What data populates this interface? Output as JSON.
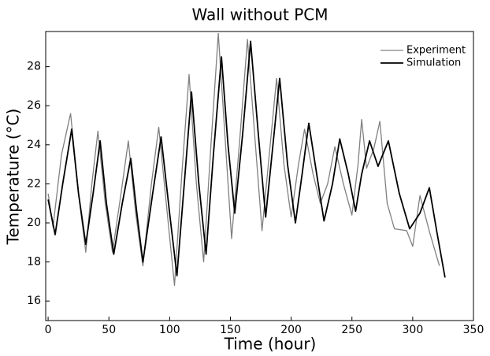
{
  "chart_data": {
    "type": "line",
    "title": "Wall without PCM",
    "x_label": "Time (hour)",
    "y_label": "Temperature (°C)",
    "xlim": [
      -2,
      350
    ],
    "xticks": [
      0,
      50,
      100,
      150,
      200,
      250,
      300,
      350
    ],
    "ylim": [
      15,
      29.8
    ],
    "yticks": [
      16,
      18,
      20,
      22,
      24,
      26,
      28
    ],
    "legend": "upper right",
    "series": [
      {
        "name": "Experiment",
        "color": "#808080",
        "x": [
          0,
          4,
          11,
          18.5,
          25,
          31,
          36,
          41,
          47,
          53,
          60,
          66,
          72,
          78,
          85,
          91,
          98,
          104,
          110,
          116,
          122,
          128,
          134,
          140,
          146,
          151,
          158,
          164,
          170,
          176,
          182,
          188,
          194,
          200,
          206,
          211,
          218,
          224,
          230,
          236,
          243,
          250,
          255,
          258,
          262,
          268,
          273,
          279,
          285,
          295,
          300,
          306,
          314,
          322
        ],
        "values": [
          21.5,
          19.8,
          23.5,
          25.6,
          21.5,
          18.5,
          22.0,
          24.7,
          21.0,
          18.5,
          21.5,
          24.2,
          20.5,
          17.8,
          22.0,
          24.9,
          20.5,
          16.8,
          22.5,
          27.6,
          22.0,
          18.0,
          24.0,
          29.7,
          24.0,
          19.2,
          24.5,
          29.4,
          24.5,
          19.6,
          23.5,
          27.4,
          23.0,
          20.3,
          23.0,
          24.8,
          22.5,
          21.0,
          22.0,
          23.9,
          22.0,
          20.4,
          23.0,
          25.3,
          22.8,
          23.8,
          25.2,
          21.0,
          19.7,
          19.6,
          18.8,
          21.4,
          19.5,
          17.8
        ]
      },
      {
        "name": "Simulation",
        "color": "#000000",
        "x": [
          0,
          5.8,
          12,
          19.4,
          25,
          31,
          37,
          42.8,
          48,
          54,
          61,
          68,
          73,
          78,
          86,
          93,
          100,
          106,
          112,
          118,
          124,
          130,
          136,
          142.6,
          148,
          153.6,
          160,
          166.6,
          173,
          179,
          185,
          190.5,
          197,
          203.5,
          209,
          214.5,
          221,
          227,
          234,
          240,
          247,
          253,
          258,
          264.5,
          271.5,
          280,
          289,
          297.5,
          306,
          313.7,
          320,
          326.6
        ],
        "values": [
          21.2,
          19.4,
          22.0,
          24.8,
          21.5,
          18.9,
          21.5,
          24.2,
          21.0,
          18.4,
          21.0,
          23.3,
          20.5,
          18.0,
          21.5,
          24.4,
          20.5,
          17.3,
          22.0,
          26.7,
          22.0,
          18.4,
          23.5,
          28.5,
          24.0,
          20.5,
          24.5,
          29.3,
          24.5,
          20.3,
          24.0,
          27.4,
          23.0,
          20.0,
          22.5,
          25.1,
          22.5,
          20.1,
          22.0,
          24.3,
          22.5,
          20.6,
          22.5,
          24.2,
          22.9,
          24.2,
          21.5,
          19.7,
          20.5,
          21.8,
          19.5,
          17.2
        ]
      }
    ]
  }
}
